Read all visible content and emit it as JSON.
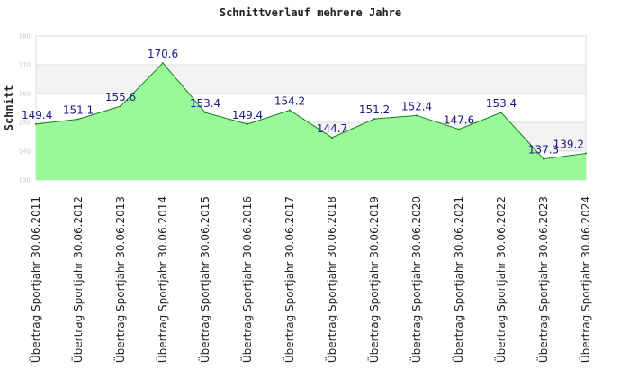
{
  "chart_data": {
    "type": "area",
    "title": "Schnittverlauf mehrere Jahre",
    "xlabel": "",
    "ylabel": "Schnitt",
    "ylim": [
      130,
      180
    ],
    "yticks": [
      130,
      140,
      150,
      160,
      170,
      180
    ],
    "grid": true,
    "categories": [
      "Übertrag Sportjahr 30.06.2011",
      "Übertrag Sportjahr 30.06.2012",
      "Übertrag Sportjahr 30.06.2013",
      "Übertrag Sportjahr 30.06.2014",
      "Übertrag Sportjahr 30.06.2015",
      "Übertrag Sportjahr 30.06.2016",
      "Übertrag Sportjahr 30.06.2017",
      "Übertrag Sportjahr 30.06.2018",
      "Übertrag Sportjahr 30.06.2019",
      "Übertrag Sportjahr 30.06.2020",
      "Übertrag Sportjahr 30.06.2021",
      "Übertrag Sportjahr 30.06.2022",
      "Übertrag Sportjahr 30.06.2023",
      "Übertrag Sportjahr 30.06.2024"
    ],
    "values": [
      149.4,
      151.1,
      155.6,
      170.6,
      153.4,
      149.4,
      154.2,
      144.7,
      151.2,
      152.4,
      147.6,
      153.4,
      137.3,
      139.2
    ],
    "fill_color": "#98f998",
    "line_color": "#1f7a1f",
    "label_color": "#1a1a80"
  }
}
